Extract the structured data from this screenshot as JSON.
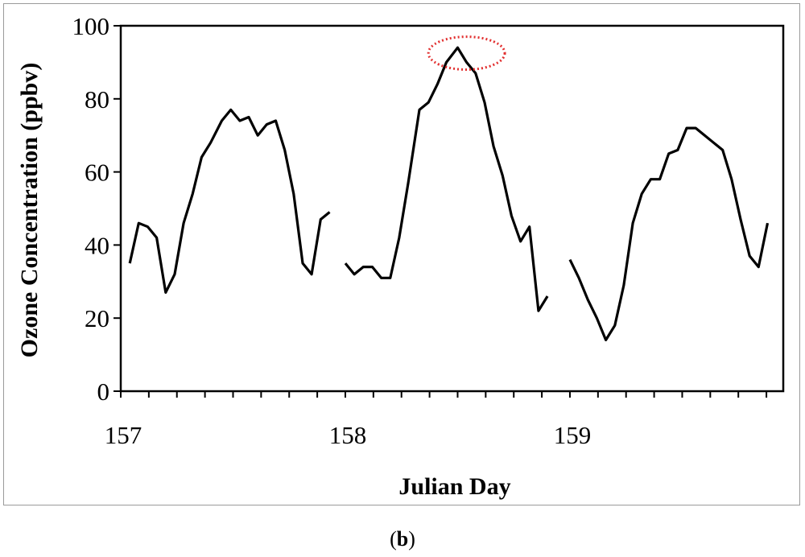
{
  "panel_label": {
    "open": "(",
    "letter": "b",
    "close": ")"
  },
  "chart_data": {
    "type": "line",
    "xlabel": "Julian Day",
    "ylabel": "Ozone Concentration (ppbv)",
    "xlim": [
      157,
      159.95
    ],
    "ylim": [
      0,
      100
    ],
    "x_ticks": [
      157,
      158,
      159
    ],
    "y_ticks": [
      0,
      20,
      40,
      60,
      80,
      100
    ],
    "grid": false,
    "legend": "none",
    "line_color": "#000000",
    "highlight_color": "#e23030",
    "highlight": {
      "x": 158.54,
      "y": 92.5,
      "rx": 0.17,
      "ry": 4.5
    },
    "segments": [
      [
        [
          157.04,
          35
        ],
        [
          157.08,
          46
        ],
        [
          157.12,
          45
        ],
        [
          157.16,
          42
        ],
        [
          157.2,
          27
        ],
        [
          157.24,
          32
        ],
        [
          157.28,
          46
        ],
        [
          157.32,
          54
        ],
        [
          157.36,
          64
        ],
        [
          157.4,
          68
        ],
        [
          157.45,
          74
        ],
        [
          157.49,
          77
        ],
        [
          157.53,
          74
        ],
        [
          157.57,
          75
        ],
        [
          157.61,
          70
        ],
        [
          157.65,
          73
        ],
        [
          157.69,
          74
        ],
        [
          157.73,
          66
        ],
        [
          157.77,
          54
        ],
        [
          157.81,
          35
        ],
        [
          157.85,
          32
        ],
        [
          157.89,
          47
        ],
        [
          157.93,
          49
        ]
      ],
      [
        [
          158.0,
          35
        ],
        [
          158.04,
          32
        ],
        [
          158.08,
          34
        ],
        [
          158.12,
          34
        ],
        [
          158.16,
          31
        ],
        [
          158.2,
          31
        ],
        [
          158.24,
          42
        ],
        [
          158.28,
          57
        ],
        [
          158.33,
          77
        ],
        [
          158.37,
          79
        ],
        [
          158.41,
          84
        ],
        [
          158.45,
          90
        ],
        [
          158.5,
          94
        ],
        [
          158.54,
          90
        ],
        [
          158.58,
          87
        ],
        [
          158.62,
          79
        ],
        [
          158.66,
          67
        ],
        [
          158.7,
          59
        ],
        [
          158.74,
          48
        ],
        [
          158.78,
          41
        ],
        [
          158.82,
          45
        ],
        [
          158.86,
          22
        ],
        [
          158.9,
          26
        ]
      ],
      [
        [
          159.0,
          36
        ],
        [
          159.04,
          31
        ],
        [
          159.08,
          25
        ],
        [
          159.12,
          20
        ],
        [
          159.16,
          14
        ],
        [
          159.2,
          18
        ],
        [
          159.24,
          29
        ],
        [
          159.28,
          46
        ],
        [
          159.32,
          54
        ],
        [
          159.36,
          58
        ],
        [
          159.4,
          58
        ],
        [
          159.44,
          65
        ],
        [
          159.48,
          66
        ],
        [
          159.52,
          72
        ],
        [
          159.56,
          72
        ],
        [
          159.6,
          70
        ],
        [
          159.64,
          68
        ],
        [
          159.68,
          66
        ],
        [
          159.72,
          58
        ],
        [
          159.76,
          47
        ],
        [
          159.8,
          37
        ],
        [
          159.84,
          34
        ],
        [
          159.88,
          46
        ]
      ]
    ]
  }
}
